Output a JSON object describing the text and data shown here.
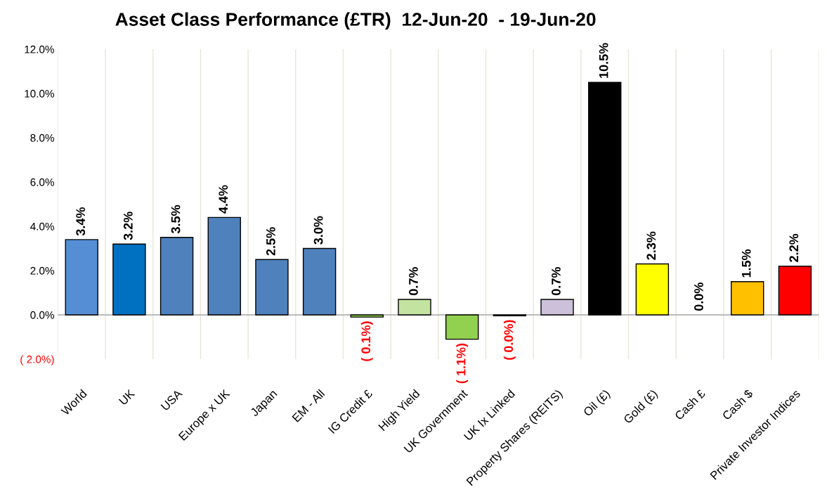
{
  "chart_data": {
    "type": "bar",
    "title": "Asset Class Performance (£TR)  12-Jun-20  - 19-Jun-20",
    "categories": [
      "World",
      "UK",
      "USA",
      "Europe x UK",
      "Japan",
      "EM - All",
      "IG Credit £",
      "High Yield",
      "UK Government",
      "UK Ix Linked",
      "Property Shares (REITS)",
      "Oil (£)",
      "Gold (£)",
      "Cash £",
      "Cash $",
      "Private Investor Indices"
    ],
    "values": [
      3.4,
      3.2,
      3.5,
      4.4,
      2.5,
      3.0,
      -0.1,
      0.7,
      -1.1,
      -0.04,
      0.7,
      10.5,
      2.3,
      0.0,
      1.5,
      2.2
    ],
    "colors": [
      "#558ed5",
      "#0070c0",
      "#4f81bd",
      "#4f81bd",
      "#4f81bd",
      "#4f81bd",
      "#92d050",
      "#c3e3a0",
      "#92d050",
      "#92d050",
      "#ccc0da",
      "#000000",
      "#ffff00",
      "#ffffff",
      "#ffc000",
      "#ff0000"
    ],
    "value_labels": [
      "3.4%",
      "3.2%",
      "3.5%",
      "4.4%",
      "2.5%",
      "3.0%",
      "( 0.1%)",
      "0.7%",
      "( 1.1%)",
      "( 0.0%)",
      "0.7%",
      "10.5%",
      "2.3%",
      "0.0%",
      "1.5%",
      "2.2%"
    ],
    "ylim": [
      -2,
      12
    ],
    "yticks": [
      {
        "value": -2,
        "label": "( 2.0%)"
      },
      {
        "value": 0,
        "label": "0.0%"
      },
      {
        "value": 2,
        "label": "2.0%"
      },
      {
        "value": 4,
        "label": "4.0%"
      },
      {
        "value": 6,
        "label": "6.0%"
      },
      {
        "value": 8,
        "label": "8.0%"
      },
      {
        "value": 10,
        "label": "10.0%"
      },
      {
        "value": 12,
        "label": "12.0%"
      }
    ],
    "grid": "x",
    "legend": false
  }
}
